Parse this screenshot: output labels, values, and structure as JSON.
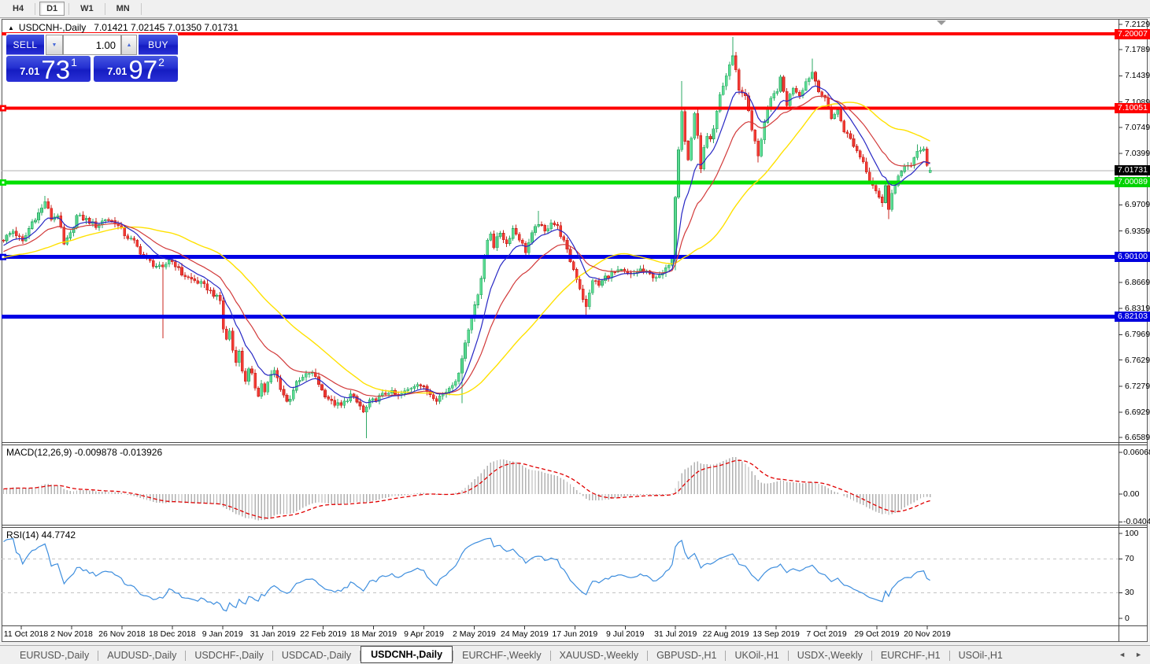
{
  "toolbar": {
    "timeframes": [
      {
        "label": "H4",
        "active": false
      },
      {
        "label": "D1",
        "active": true
      },
      {
        "label": "W1",
        "active": false
      },
      {
        "label": "MN",
        "active": false
      }
    ]
  },
  "chart": {
    "collapse_icon": "▲",
    "symbol": "USDCNH-,Daily",
    "ohlc": "7.01421 7.02145 7.01350 7.01731"
  },
  "trade_panel": {
    "sell_label": "SELL",
    "buy_label": "BUY",
    "volume": "1.00",
    "spinner_down_icon": "▼",
    "spinner_up_icon": "▲",
    "sell_price_small": "7.01",
    "sell_price_big": "73",
    "sell_price_sup": "1",
    "buy_price_small": "7.01",
    "buy_price_big": "97",
    "buy_price_sup": "2"
  },
  "price_axis": {
    "ticks": [
      "7.21290",
      "7.17890",
      "7.14390",
      "7.10890",
      "7.07490",
      "7.03990",
      "6.97090",
      "6.93590",
      "6.86690",
      "6.83190",
      "6.79690",
      "6.76290",
      "6.72790",
      "6.69290",
      "6.65890"
    ],
    "badges": [
      {
        "text": "7.20007",
        "price": 7.20007,
        "bg": "#fe0000"
      },
      {
        "text": "7.10051",
        "price": 7.10051,
        "bg": "#fe0000"
      },
      {
        "text": "7.01731",
        "price": 7.01731,
        "bg": "#000000"
      },
      {
        "text": "7.00089",
        "price": 7.00089,
        "bg": "#00d200"
      },
      {
        "text": "6.90100",
        "price": 6.901,
        "bg": "#0000dd"
      },
      {
        "text": "6.82103",
        "price": 6.82103,
        "bg": "#0000dd"
      }
    ]
  },
  "levels": {
    "lines": [
      {
        "price": 7.20007,
        "color": "#fe0000",
        "width": 4,
        "marker": false
      },
      {
        "price": 7.10051,
        "color": "#fe0000",
        "width": 4,
        "marker": true
      },
      {
        "price": 7.00089,
        "color": "#00e000",
        "width": 5,
        "marker": true
      },
      {
        "price": 6.901,
        "color": "#0000e4",
        "width": 5,
        "marker": true
      },
      {
        "price": 6.82103,
        "color": "#0000e4",
        "width": 5,
        "marker": false
      }
    ],
    "current": {
      "price": 7.01731,
      "color": "#b2b2b2"
    }
  },
  "macd": {
    "label": "MACD(12,26,9) -0.009878 -0.013926",
    "fast": 12,
    "slow": 26,
    "signal": 9,
    "axis": [
      {
        "text": "0.060687",
        "value": 0.060687
      },
      {
        "text": "0.00",
        "value": 0
      },
      {
        "text": "-0.040432",
        "value": -0.040432
      }
    ],
    "hist_color": "#b2b2b2",
    "signal_color": "#e00000"
  },
  "rsi": {
    "label": "RSI(14) 44.7742",
    "period": 14,
    "axis": [
      {
        "text": "100",
        "value": 100
      },
      {
        "text": "70",
        "value": 70
      },
      {
        "text": "30",
        "value": 30
      },
      {
        "text": "0",
        "value": 0
      }
    ],
    "levels": [
      70,
      30
    ],
    "color": "#3e8ede",
    "level_color": "#c4c4c4"
  },
  "date_axis": {
    "labels": [
      "11 Oct 2018",
      "2 Nov 2018",
      "26 Nov 2018",
      "18 Dec 2018",
      "9 Jan 2019",
      "31 Jan 2019",
      "22 Feb 2019",
      "18 Mar 2019",
      "9 Apr 2019",
      "2 May 2019",
      "24 May 2019",
      "17 Jun 2019",
      "9 Jul 2019",
      "31 Jul 2019",
      "22 Aug 2019",
      "13 Sep 2019",
      "7 Oct 2019",
      "29 Oct 2019",
      "20 Nov 2019"
    ]
  },
  "tabs": {
    "items": [
      {
        "label": "EURUSD-,Daily",
        "active": false
      },
      {
        "label": "AUDUSD-,Daily",
        "active": false
      },
      {
        "label": "USDCHF-,Daily",
        "active": false
      },
      {
        "label": "USDCAD-,Daily",
        "active": false
      },
      {
        "label": "USDCNH-,Daily",
        "active": true
      },
      {
        "label": "EURCHF-,Weekly",
        "active": false
      },
      {
        "label": "XAUUSD-,Weekly",
        "active": false
      },
      {
        "label": "GBPUSD-,H1",
        "active": false
      },
      {
        "label": "UKOil-,H1",
        "active": false
      },
      {
        "label": "USDX-,Weekly",
        "active": false
      },
      {
        "label": "EURCHF-,H1",
        "active": false
      },
      {
        "label": "USOil-,H1",
        "active": false
      }
    ],
    "left_arrow": "◄",
    "right_arrow": "►"
  },
  "chart_data": {
    "type": "candlestick",
    "symbol": "USDCNH",
    "timeframe": "Daily",
    "visible_range": {
      "first_date": "11 Oct 2018",
      "last_date": "20 Nov 2019",
      "price_min": 6.6589,
      "price_max": 7.2129
    },
    "last": {
      "open": 7.01421,
      "high": 7.02145,
      "low": 7.0135,
      "close": 7.01731
    },
    "candle_count": 292,
    "noise_amp": 0.007,
    "virtual_history": {
      "start": 6.877,
      "end": 6.922,
      "count": 30
    },
    "close_anchors": [
      [
        0,
        6.925
      ],
      [
        3,
        6.936
      ],
      [
        6,
        6.921
      ],
      [
        9,
        6.948
      ],
      [
        12,
        6.966
      ],
      [
        13,
        6.976
      ],
      [
        15,
        6.952
      ],
      [
        17,
        6.958
      ],
      [
        19,
        6.917
      ],
      [
        21,
        6.931
      ],
      [
        23,
        6.956
      ],
      [
        26,
        6.951
      ],
      [
        29,
        6.943
      ],
      [
        32,
        6.952
      ],
      [
        35,
        6.948
      ],
      [
        38,
        6.931
      ],
      [
        41,
        6.921
      ],
      [
        44,
        6.901
      ],
      [
        47,
        6.891
      ],
      [
        50,
        6.885
      ],
      [
        52,
        6.898
      ],
      [
        54,
        6.891
      ],
      [
        56,
        6.878
      ],
      [
        59,
        6.871
      ],
      [
        62,
        6.865
      ],
      [
        64,
        6.859
      ],
      [
        66,
        6.851
      ],
      [
        68,
        6.842
      ],
      [
        69,
        6.805
      ],
      [
        70,
        6.79
      ],
      [
        71,
        6.802
      ],
      [
        72,
        6.776
      ],
      [
        73,
        6.763
      ],
      [
        74,
        6.773
      ],
      [
        75,
        6.749
      ],
      [
        76,
        6.736
      ],
      [
        77,
        6.749
      ],
      [
        78,
        6.742
      ],
      [
        79,
        6.727
      ],
      [
        80,
        6.717
      ],
      [
        81,
        6.731
      ],
      [
        82,
        6.721
      ],
      [
        83,
        6.732
      ],
      [
        84,
        6.742
      ],
      [
        85,
        6.748
      ],
      [
        86,
        6.738
      ],
      [
        87,
        6.726
      ],
      [
        88,
        6.716
      ],
      [
        89,
        6.707
      ],
      [
        90,
        6.713
      ],
      [
        91,
        6.724
      ],
      [
        92,
        6.731
      ],
      [
        94,
        6.739
      ],
      [
        96,
        6.746
      ],
      [
        98,
        6.741
      ],
      [
        100,
        6.722
      ],
      [
        103,
        6.706
      ],
      [
        106,
        6.701
      ],
      [
        109,
        6.716
      ],
      [
        112,
        6.701
      ],
      [
        113,
        6.692
      ],
      [
        115,
        6.706
      ],
      [
        118,
        6.713
      ],
      [
        121,
        6.721
      ],
      [
        124,
        6.714
      ],
      [
        127,
        6.723
      ],
      [
        130,
        6.733
      ],
      [
        133,
        6.721
      ],
      [
        136,
        6.711
      ],
      [
        139,
        6.721
      ],
      [
        141,
        6.732
      ],
      [
        143,
        6.742
      ],
      [
        144,
        6.768
      ],
      [
        145,
        6.788
      ],
      [
        146,
        6.803
      ],
      [
        147,
        6.819
      ],
      [
        148,
        6.838
      ],
      [
        149,
        6.853
      ],
      [
        150,
        6.873
      ],
      [
        151,
        6.898
      ],
      [
        152,
        6.924
      ],
      [
        153,
        6.934
      ],
      [
        154,
        6.916
      ],
      [
        156,
        6.934
      ],
      [
        158,
        6.919
      ],
      [
        160,
        6.939
      ],
      [
        162,
        6.926
      ],
      [
        164,
        6.909
      ],
      [
        166,
        6.931
      ],
      [
        168,
        6.947
      ],
      [
        170,
        6.934
      ],
      [
        172,
        6.949
      ],
      [
        174,
        6.941
      ],
      [
        176,
        6.921
      ],
      [
        178,
        6.896
      ],
      [
        180,
        6.873
      ],
      [
        182,
        6.846
      ],
      [
        183,
        6.833
      ],
      [
        185,
        6.871
      ],
      [
        187,
        6.863
      ],
      [
        189,
        6.874
      ],
      [
        191,
        6.879
      ],
      [
        194,
        6.882
      ],
      [
        197,
        6.876
      ],
      [
        200,
        6.884
      ],
      [
        203,
        6.877
      ],
      [
        206,
        6.874
      ],
      [
        208,
        6.884
      ],
      [
        210,
        6.902
      ],
      [
        211,
        6.984
      ],
      [
        212,
        7.048
      ],
      [
        213,
        7.098
      ],
      [
        214,
        7.056
      ],
      [
        215,
        7.031
      ],
      [
        216,
        7.061
      ],
      [
        217,
        7.094
      ],
      [
        218,
        7.061
      ],
      [
        219,
        7.022
      ],
      [
        220,
        7.046
      ],
      [
        221,
        7.061
      ],
      [
        222,
        7.056
      ],
      [
        223,
        7.071
      ],
      [
        224,
        7.094
      ],
      [
        225,
        7.118
      ],
      [
        226,
        7.131
      ],
      [
        227,
        7.144
      ],
      [
        228,
        7.159
      ],
      [
        229,
        7.169
      ],
      [
        230,
        7.154
      ],
      [
        231,
        7.124
      ],
      [
        233,
        7.119
      ],
      [
        235,
        7.071
      ],
      [
        237,
        7.038
      ],
      [
        239,
        7.081
      ],
      [
        241,
        7.111
      ],
      [
        243,
        7.126
      ],
      [
        244,
        7.139
      ],
      [
        246,
        7.106
      ],
      [
        248,
        7.129
      ],
      [
        250,
        7.119
      ],
      [
        252,
        7.136
      ],
      [
        254,
        7.149
      ],
      [
        256,
        7.126
      ],
      [
        258,
        7.111
      ],
      [
        260,
        7.089
      ],
      [
        262,
        7.097
      ],
      [
        264,
        7.071
      ],
      [
        266,
        7.059
      ],
      [
        268,
        7.043
      ],
      [
        270,
        7.029
      ],
      [
        272,
        7.006
      ],
      [
        274,
        6.991
      ],
      [
        276,
        6.972
      ],
      [
        277,
        6.999
      ],
      [
        278,
        6.968
      ],
      [
        279,
        6.986
      ],
      [
        281,
        7.006
      ],
      [
        283,
        7.026
      ],
      [
        285,
        7.021
      ],
      [
        287,
        7.042
      ],
      [
        289,
        7.046
      ],
      [
        290,
        7.024
      ],
      [
        291,
        7.01731
      ]
    ],
    "wick_overrides": {
      "13": {
        "high": 6.983
      },
      "50": {
        "low": 6.792
      },
      "114": {
        "low": 6.658
      },
      "144": {
        "low": 6.705
      },
      "168": {
        "high": 6.963
      },
      "183": {
        "low": 6.821
      },
      "211": {
        "low": 6.883
      },
      "213": {
        "high": 7.137
      },
      "229": {
        "high": 7.196
      },
      "237": {
        "low": 7.028
      },
      "254": {
        "high": 7.167
      },
      "278": {
        "low": 6.952
      },
      "287": {
        "high": 7.052
      }
    },
    "moving_averages": [
      {
        "type": "ema",
        "period": 10,
        "color": "#2727c4"
      },
      {
        "type": "ema",
        "period": 22,
        "color": "#d23a3a"
      },
      {
        "type": "sma",
        "period": 45,
        "color": "#ffe100"
      }
    ],
    "bull": {
      "fill": "#5adb92",
      "stroke": "#2ea865"
    },
    "bear": {
      "fill": "#f23a34",
      "stroke": "#c8241e"
    }
  }
}
